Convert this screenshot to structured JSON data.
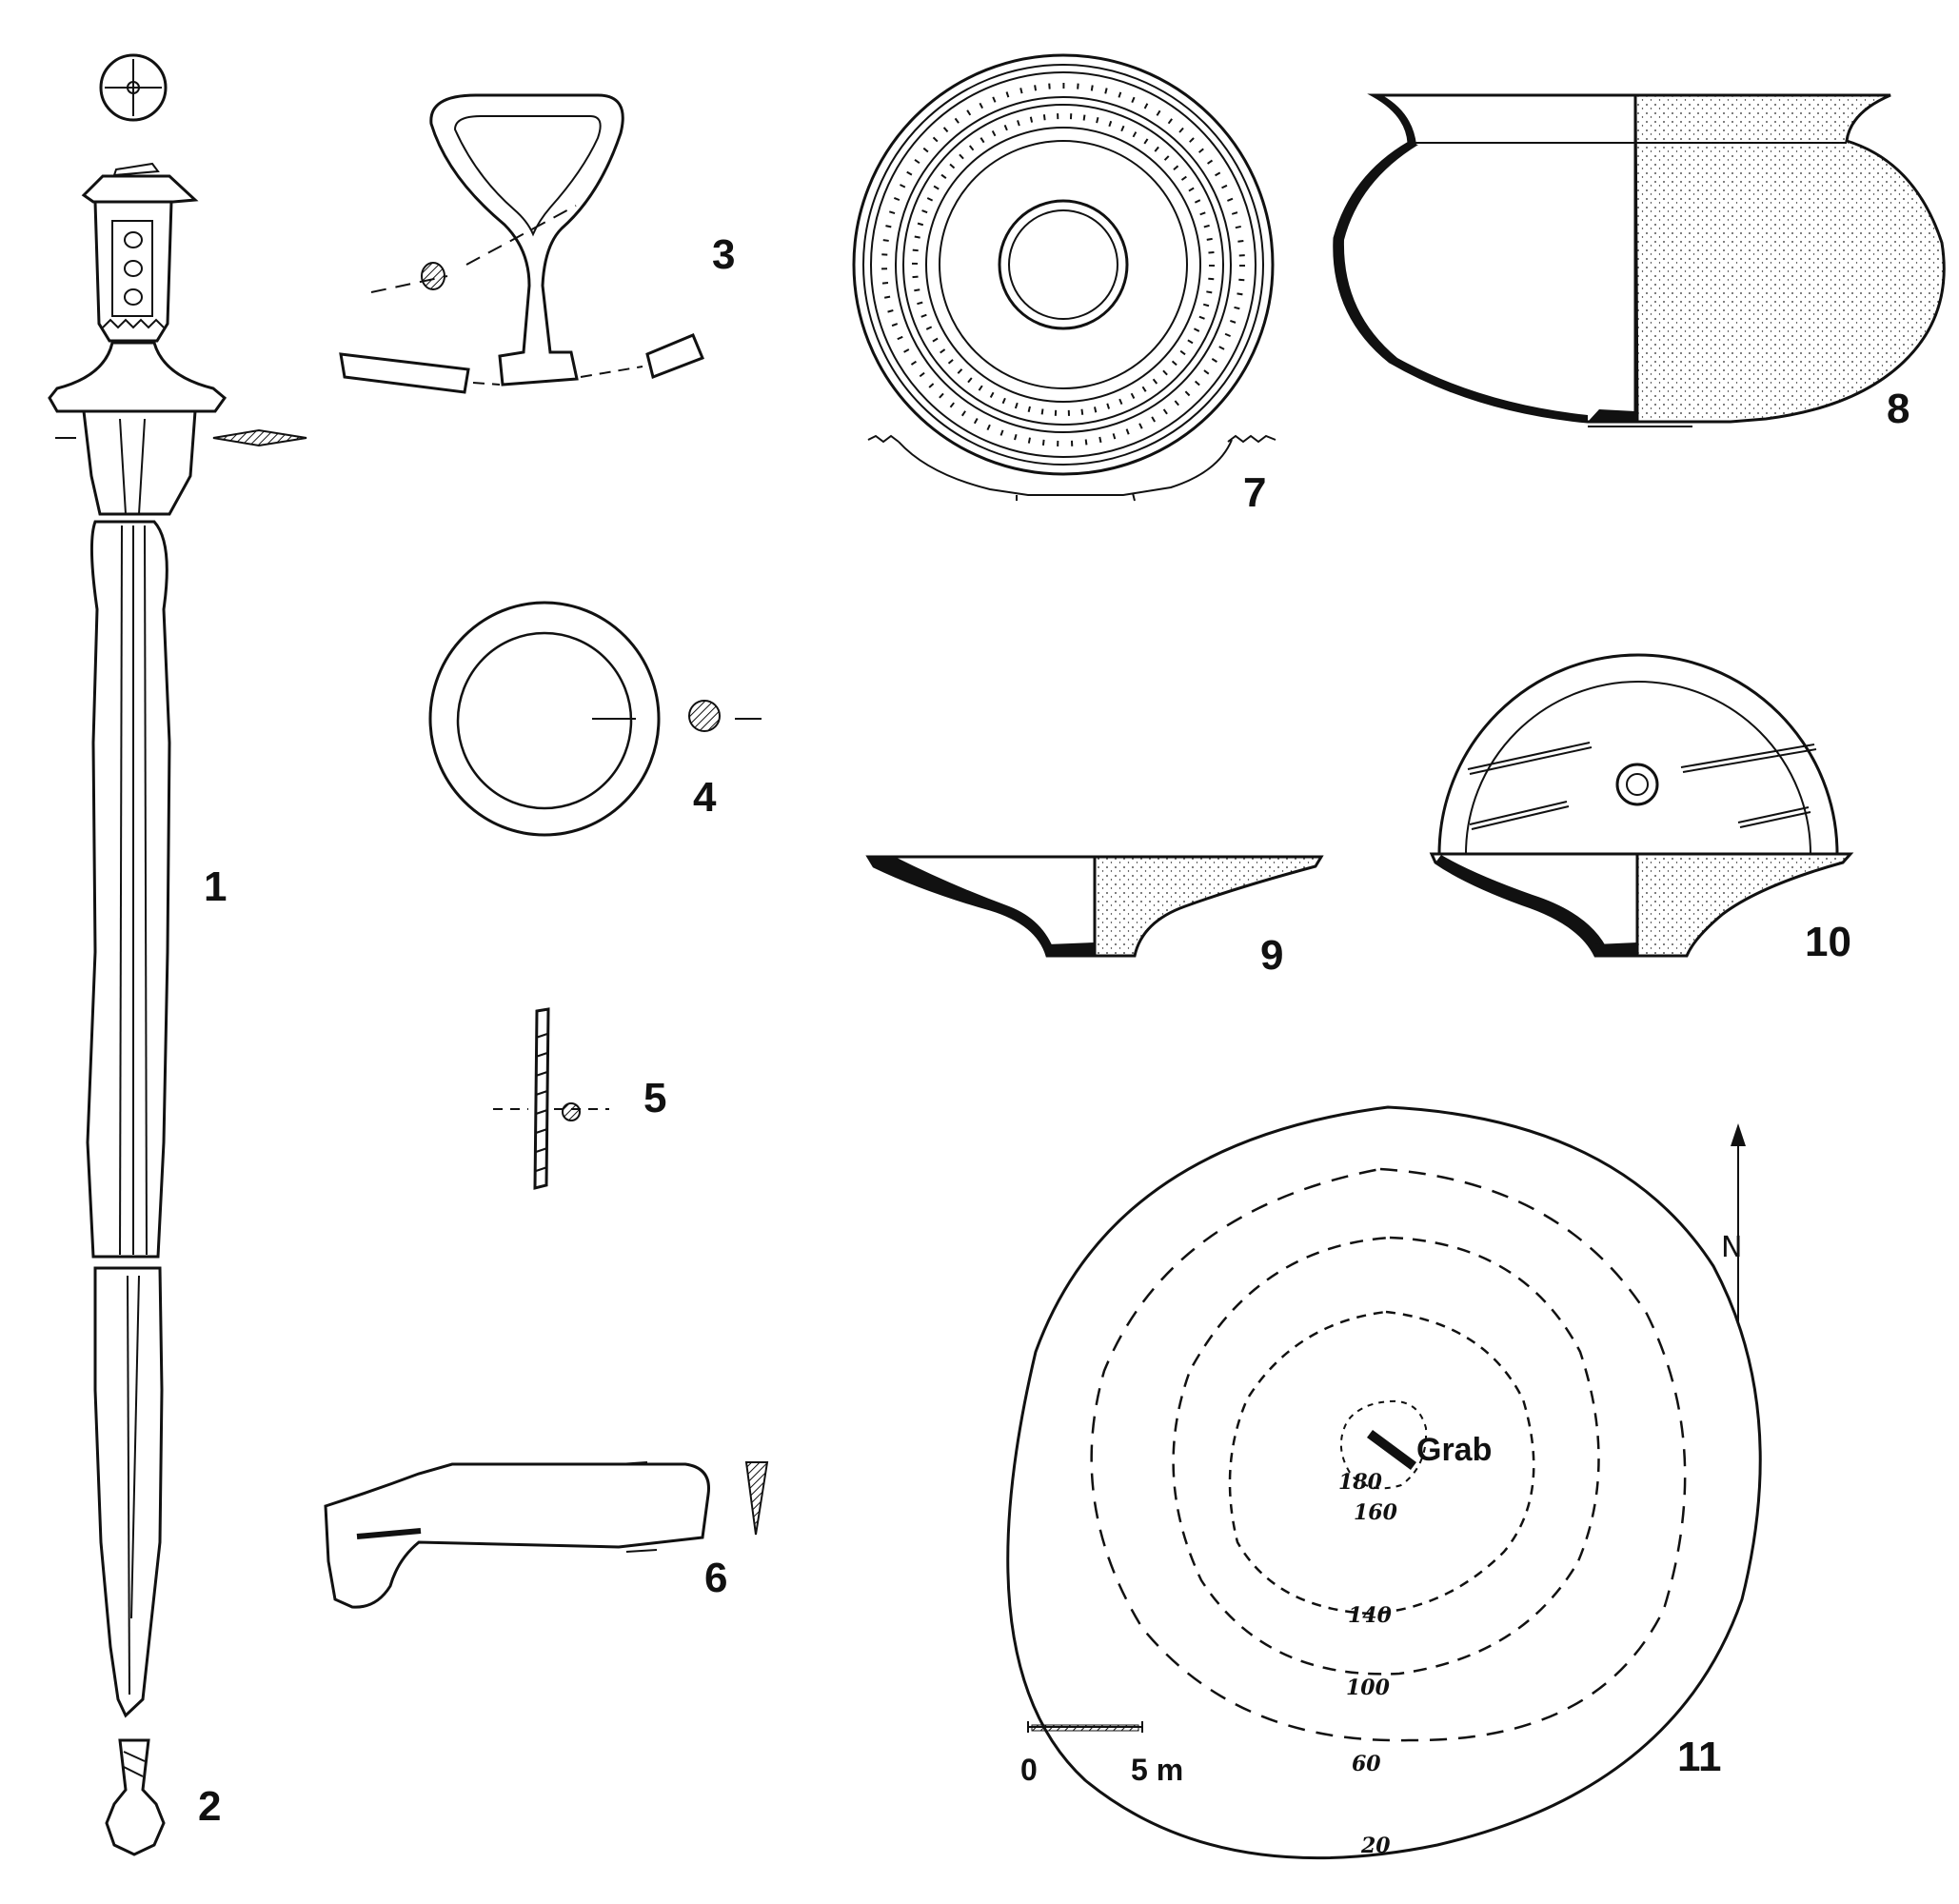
{
  "figure_numbers": {
    "n1": "1",
    "n2": "2",
    "n3": "3",
    "n4": "4",
    "n5": "5",
    "n6": "6",
    "n7": "7",
    "n8": "8",
    "n9": "9",
    "n10": "10",
    "n11": "11"
  },
  "plan": {
    "grave_label": "Grab",
    "north_label": "N",
    "contour_labels": {
      "c180": "180",
      "c160": "160",
      "c140": "140",
      "c100": "100",
      "c60": "60",
      "c20": "20"
    },
    "scale": {
      "start_label": "0",
      "end_label": "5 m"
    }
  },
  "colors": {
    "ink": "#111111",
    "paper": "#ffffff"
  }
}
